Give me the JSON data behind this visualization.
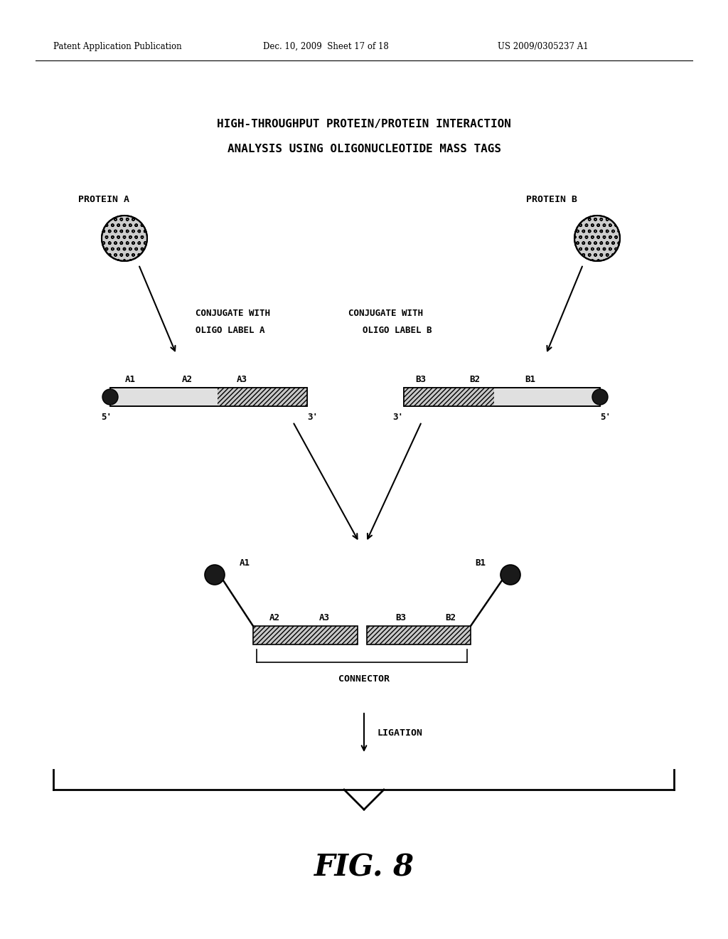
{
  "header_left": "Patent Application Publication",
  "header_mid": "Dec. 10, 2009  Sheet 17 of 18",
  "header_right": "US 2009/0305237 A1",
  "title_line1": "HIGH-THROUGHPUT PROTEIN/PROTEIN INTERACTION",
  "title_line2": "ANALYSIS USING OLIGONUCLEOTIDE MASS TAGS",
  "protein_a_label": "PROTEIN A",
  "protein_b_label": "PROTEIN B",
  "conjugate_a_line1": "CONJUGATE WITH",
  "conjugate_a_line2": "OLIGO LABEL A",
  "conjugate_b_line1": "CONJUGATE WITH",
  "conjugate_b_line2": "OLIGO LABEL B",
  "strand_a_labels": [
    "A1",
    "A2",
    "A3"
  ],
  "strand_b_labels": [
    "B3",
    "B2",
    "B1"
  ],
  "connector_label": "CONNECTOR",
  "ligation_label": "LIGATION",
  "fig_label": "FIG. 8",
  "bg_color": "#ffffff",
  "fg_color": "#000000"
}
